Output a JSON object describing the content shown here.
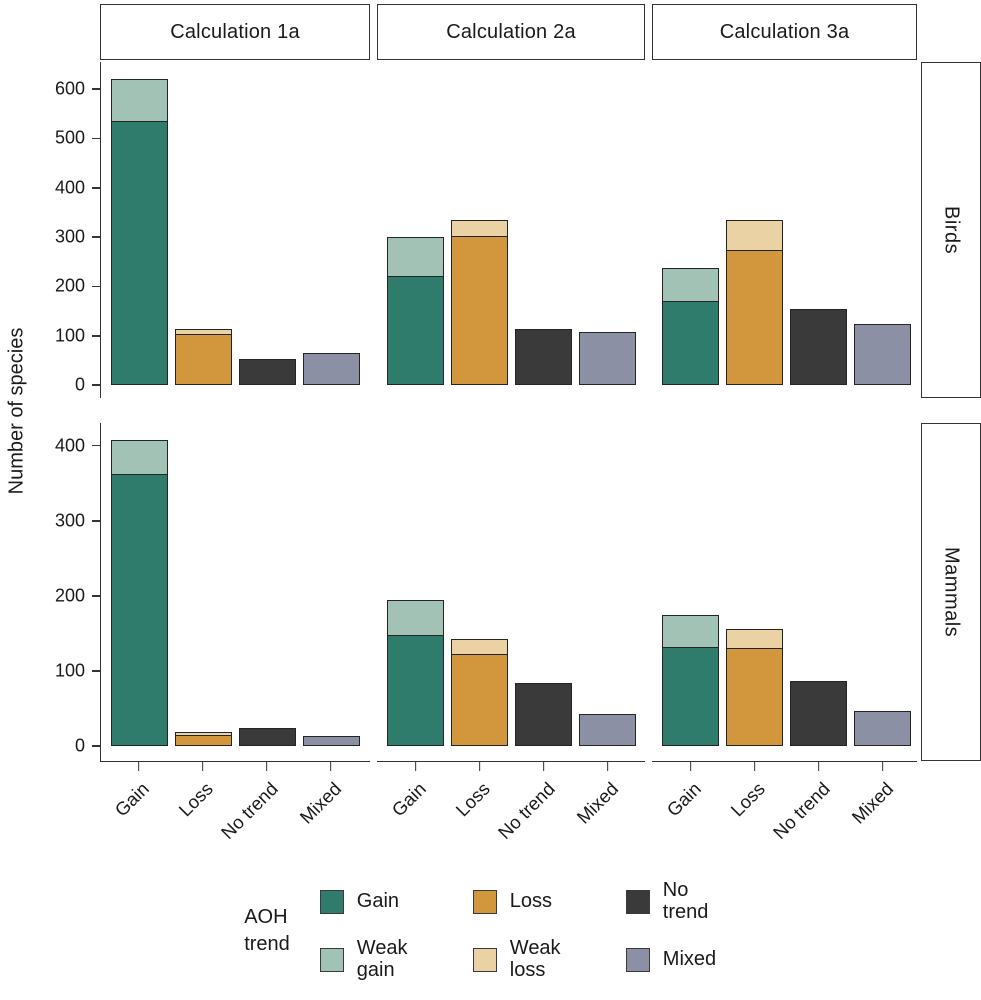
{
  "figure": {
    "y_axis_title": "Number of species",
    "column_labels": [
      "Calculation 1a",
      "Calculation 2a",
      "Calculation 3a"
    ],
    "row_labels": [
      "Birds",
      "Mammals"
    ]
  },
  "colors": {
    "gain": "#2F7C6C",
    "weak_gain": "#A3C2B6",
    "loss": "#D2963D",
    "weak_loss": "#EAD2A4",
    "no_trend": "#3A3A3A",
    "mixed": "#8B90A5"
  },
  "legend": {
    "title_lines": [
      "AOH",
      "trend"
    ],
    "items": [
      {
        "label": "Gain",
        "key": "gain"
      },
      {
        "label": "Weak gain",
        "key": "weak_gain"
      },
      {
        "label": "Loss",
        "key": "loss"
      },
      {
        "label": "Weak loss",
        "key": "weak_loss"
      },
      {
        "label": "No trend",
        "key": "no_trend"
      },
      {
        "label": "Mixed",
        "key": "mixed"
      }
    ]
  },
  "chart_data": {
    "type": "bar",
    "stacked": true,
    "grid": false,
    "legend_position": "bottom",
    "ylabel": "Number of species",
    "xlabel": "",
    "title": "",
    "x_categories": [
      "Gain",
      "Loss",
      "No trend",
      "Mixed"
    ],
    "facet_columns": [
      "Calculation 1a",
      "Calculation 2a",
      "Calculation 3a"
    ],
    "facet_rows": [
      "Birds",
      "Mammals"
    ],
    "rows": [
      {
        "facet_row": "Birds",
        "ylim": [
          0,
          655
        ],
        "yticks": [
          0,
          100,
          200,
          300,
          400,
          500,
          600
        ],
        "panels": [
          {
            "facet_col": "Calculation 1a",
            "bars": [
              {
                "category": "Gain",
                "segments": [
                  {
                    "name": "Gain",
                    "key": "gain",
                    "value": 535
                  },
                  {
                    "name": "Weak gain",
                    "key": "weak_gain",
                    "value": 85
                  }
                ]
              },
              {
                "category": "Loss",
                "segments": [
                  {
                    "name": "Loss",
                    "key": "loss",
                    "value": 104
                  },
                  {
                    "name": "Weak loss",
                    "key": "weak_loss",
                    "value": 10
                  }
                ]
              },
              {
                "category": "No trend",
                "segments": [
                  {
                    "name": "No trend",
                    "key": "no_trend",
                    "value": 53
                  }
                ]
              },
              {
                "category": "Mixed",
                "segments": [
                  {
                    "name": "Mixed",
                    "key": "mixed",
                    "value": 65
                  }
                ]
              }
            ]
          },
          {
            "facet_col": "Calculation 2a",
            "bars": [
              {
                "category": "Gain",
                "segments": [
                  {
                    "name": "Gain",
                    "key": "gain",
                    "value": 222
                  },
                  {
                    "name": "Weak gain",
                    "key": "weak_gain",
                    "value": 78
                  }
                ]
              },
              {
                "category": "Loss",
                "segments": [
                  {
                    "name": "Loss",
                    "key": "loss",
                    "value": 302
                  },
                  {
                    "name": "Weak loss",
                    "key": "weak_loss",
                    "value": 33
                  }
                ]
              },
              {
                "category": "No trend",
                "segments": [
                  {
                    "name": "No trend",
                    "key": "no_trend",
                    "value": 113
                  }
                ]
              },
              {
                "category": "Mixed",
                "segments": [
                  {
                    "name": "Mixed",
                    "key": "mixed",
                    "value": 107
                  }
                ]
              }
            ]
          },
          {
            "facet_col": "Calculation 3a",
            "bars": [
              {
                "category": "Gain",
                "segments": [
                  {
                    "name": "Gain",
                    "key": "gain",
                    "value": 170
                  },
                  {
                    "name": "Weak gain",
                    "key": "weak_gain",
                    "value": 68
                  }
                ]
              },
              {
                "category": "Loss",
                "segments": [
                  {
                    "name": "Loss",
                    "key": "loss",
                    "value": 274
                  },
                  {
                    "name": "Weak loss",
                    "key": "weak_loss",
                    "value": 60
                  }
                ]
              },
              {
                "category": "No trend",
                "segments": [
                  {
                    "name": "No trend",
                    "key": "no_trend",
                    "value": 155
                  }
                ]
              },
              {
                "category": "Mixed",
                "segments": [
                  {
                    "name": "Mixed",
                    "key": "mixed",
                    "value": 124
                  }
                ]
              }
            ]
          }
        ]
      },
      {
        "facet_row": "Mammals",
        "ylim": [
          0,
          430
        ],
        "yticks": [
          0,
          100,
          200,
          300,
          400
        ],
        "panels": [
          {
            "facet_col": "Calculation 1a",
            "bars": [
              {
                "category": "Gain",
                "segments": [
                  {
                    "name": "Gain",
                    "key": "gain",
                    "value": 362
                  },
                  {
                    "name": "Weak gain",
                    "key": "weak_gain",
                    "value": 45
                  }
                ]
              },
              {
                "category": "Loss",
                "segments": [
                  {
                    "name": "Loss",
                    "key": "loss",
                    "value": 15
                  },
                  {
                    "name": "Weak loss",
                    "key": "weak_loss",
                    "value": 4
                  }
                ]
              },
              {
                "category": "No trend",
                "segments": [
                  {
                    "name": "No trend",
                    "key": "no_trend",
                    "value": 24
                  }
                ]
              },
              {
                "category": "Mixed",
                "segments": [
                  {
                    "name": "Mixed",
                    "key": "mixed",
                    "value": 13
                  }
                ]
              }
            ]
          },
          {
            "facet_col": "Calculation 2a",
            "bars": [
              {
                "category": "Gain",
                "segments": [
                  {
                    "name": "Gain",
                    "key": "gain",
                    "value": 148
                  },
                  {
                    "name": "Weak gain",
                    "key": "weak_gain",
                    "value": 47
                  }
                ]
              },
              {
                "category": "Loss",
                "segments": [
                  {
                    "name": "Loss",
                    "key": "loss",
                    "value": 123
                  },
                  {
                    "name": "Weak loss",
                    "key": "weak_loss",
                    "value": 20
                  }
                ]
              },
              {
                "category": "No trend",
                "segments": [
                  {
                    "name": "No trend",
                    "key": "no_trend",
                    "value": 84
                  }
                ]
              },
              {
                "category": "Mixed",
                "segments": [
                  {
                    "name": "Mixed",
                    "key": "mixed",
                    "value": 43
                  }
                ]
              }
            ]
          },
          {
            "facet_col": "Calculation 3a",
            "bars": [
              {
                "category": "Gain",
                "segments": [
                  {
                    "name": "Gain",
                    "key": "gain",
                    "value": 132
                  },
                  {
                    "name": "Weak gain",
                    "key": "weak_gain",
                    "value": 43
                  }
                ]
              },
              {
                "category": "Loss",
                "segments": [
                  {
                    "name": "Loss",
                    "key": "loss",
                    "value": 130
                  },
                  {
                    "name": "Weak loss",
                    "key": "weak_loss",
                    "value": 26
                  }
                ]
              },
              {
                "category": "No trend",
                "segments": [
                  {
                    "name": "No trend",
                    "key": "no_trend",
                    "value": 87
                  }
                ]
              },
              {
                "category": "Mixed",
                "segments": [
                  {
                    "name": "Mixed",
                    "key": "mixed",
                    "value": 46
                  }
                ]
              }
            ]
          }
        ]
      }
    ]
  }
}
